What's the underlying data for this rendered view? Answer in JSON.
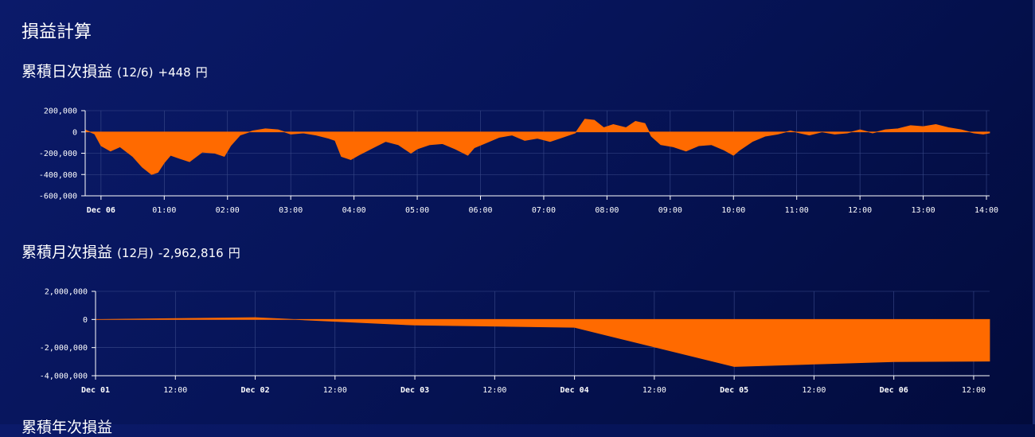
{
  "page": {
    "title": "損益計算"
  },
  "daily": {
    "title": "累積日次損益",
    "period": "(12/6)",
    "value": "+448",
    "unit": "円"
  },
  "monthly": {
    "title": "累積月次損益",
    "period": "(12月)",
    "value": "-2,962,816",
    "unit": "円"
  },
  "yearly": {
    "title": "累積年次損益"
  },
  "colors": {
    "area": "#ff6a00",
    "grid": "#3a4a8a",
    "axis": "#ffffff"
  },
  "chart_data": [
    {
      "type": "area",
      "x_unit": "hour",
      "ylim": [
        -600000,
        200000
      ],
      "yticks": [
        200000,
        0,
        -200000,
        -400000,
        -600000
      ],
      "ytick_labels": [
        "200,000",
        "0",
        "-200,000",
        "-400,000",
        "-600,000"
      ],
      "xlim": [
        -0.25,
        14.05
      ],
      "xticks": [
        0,
        1,
        2,
        3,
        4,
        5,
        6,
        7,
        8,
        9,
        10,
        11,
        12,
        13,
        14
      ],
      "xtick_labels": [
        "Dec 06",
        "01:00",
        "02:00",
        "03:00",
        "04:00",
        "05:00",
        "06:00",
        "07:00",
        "08:00",
        "09:00",
        "10:00",
        "11:00",
        "12:00",
        "13:00",
        "14:00"
      ],
      "bold_ticks": [
        "Dec 06"
      ],
      "x": [
        -0.25,
        -0.1,
        0.0,
        0.15,
        0.3,
        0.5,
        0.65,
        0.8,
        0.9,
        1.0,
        1.1,
        1.25,
        1.4,
        1.6,
        1.8,
        1.95,
        2.05,
        2.2,
        2.4,
        2.6,
        2.8,
        3.0,
        3.2,
        3.4,
        3.6,
        3.7,
        3.8,
        3.95,
        4.1,
        4.3,
        4.5,
        4.7,
        4.9,
        5.0,
        5.2,
        5.4,
        5.6,
        5.8,
        5.9,
        6.1,
        6.3,
        6.5,
        6.7,
        6.9,
        7.1,
        7.3,
        7.5,
        7.65,
        7.8,
        7.95,
        8.1,
        8.3,
        8.45,
        8.6,
        8.7,
        8.85,
        9.05,
        9.25,
        9.45,
        9.65,
        9.85,
        10.0,
        10.1,
        10.3,
        10.5,
        10.7,
        10.9,
        11.05,
        11.2,
        11.4,
        11.6,
        11.8,
        12.0,
        12.2,
        12.4,
        12.6,
        12.8,
        13.0,
        13.2,
        13.4,
        13.6,
        13.8,
        13.95,
        14.05
      ],
      "y": [
        20000,
        -20000,
        -130000,
        -180000,
        -140000,
        -230000,
        -330000,
        -400000,
        -380000,
        -290000,
        -220000,
        -250000,
        -280000,
        -190000,
        -200000,
        -230000,
        -130000,
        -30000,
        10000,
        30000,
        20000,
        -20000,
        -10000,
        -30000,
        -60000,
        -80000,
        -230000,
        -260000,
        -210000,
        -150000,
        -90000,
        -120000,
        -200000,
        -160000,
        -120000,
        -110000,
        -160000,
        -220000,
        -150000,
        -100000,
        -50000,
        -30000,
        -80000,
        -60000,
        -90000,
        -50000,
        -10000,
        120000,
        110000,
        40000,
        70000,
        40000,
        100000,
        80000,
        -40000,
        -120000,
        -140000,
        -180000,
        -130000,
        -120000,
        -170000,
        -220000,
        -170000,
        -90000,
        -40000,
        -20000,
        10000,
        -10000,
        -30000,
        0,
        -20000,
        -10000,
        20000,
        -10000,
        20000,
        30000,
        60000,
        50000,
        70000,
        40000,
        20000,
        -10000,
        -20000,
        -10000
      ],
      "series": [
        {
          "name": "",
          "color": "#ff6a00"
        }
      ]
    },
    {
      "type": "area",
      "x_unit": "day",
      "ylim": [
        -4000000,
        2000000
      ],
      "yticks": [
        2000000,
        0,
        -2000000,
        -4000000
      ],
      "ytick_labels": [
        "2,000,000",
        "0",
        "-2,000,000",
        "-4,000,000"
      ],
      "xlim": [
        1,
        6.6
      ],
      "xticks": [
        1,
        1.5,
        2,
        2.5,
        3,
        3.5,
        4,
        4.5,
        5,
        5.5,
        6,
        6.5
      ],
      "xtick_labels": [
        "Dec 01",
        "12:00",
        "Dec 02",
        "12:00",
        "Dec 03",
        "12:00",
        "Dec 04",
        "12:00",
        "Dec 05",
        "12:00",
        "Dec 06",
        "12:00"
      ],
      "bold_ticks": [
        "Dec 01",
        "Dec 02",
        "Dec 03",
        "Dec 04",
        "Dec 05",
        "Dec 06"
      ],
      "x": [
        1,
        2,
        3,
        4,
        5,
        6,
        6.6
      ],
      "y": [
        0,
        130000,
        -400000,
        -560000,
        -3350000,
        -3000000,
        -2962816
      ],
      "series": [
        {
          "name": "",
          "color": "#ff6a00"
        }
      ]
    }
  ]
}
